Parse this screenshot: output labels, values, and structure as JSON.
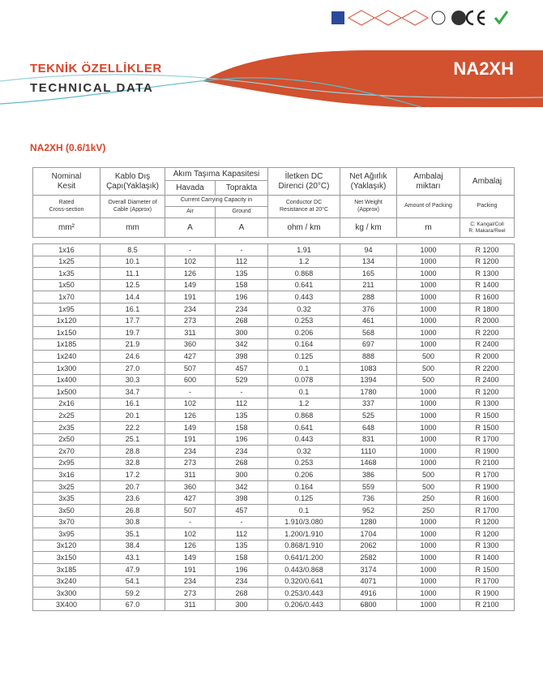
{
  "header": {
    "title_tr": "TEKNİK ÖZELLİKLER",
    "title_en": "TECHNICAL DATA",
    "product": "NA2XH"
  },
  "subtitle": "NA2XH (0.6/1kV)",
  "table": {
    "head_tr": {
      "kesit": "Nominal\nKesit",
      "cap": "Kablo Dış\nÇapı(Yaklaşık)",
      "akim": "Akım Taşıma Kapasitesi",
      "havada": "Havada",
      "toprakta": "Toprakta",
      "direnc": "İletken DC\nDirenci (20°C)",
      "agirlik": "Net Ağırlık\n(Yaklaşık)",
      "miktar": "Ambalaj\nmiktarı",
      "ambalaj": "Ambalaj"
    },
    "head_en": {
      "kesit": "Rated\nCross-section",
      "cap": "Overall Diameter of\nCable (Approx)",
      "akim": "Current Carrying Capacity in",
      "havada": "Air",
      "toprakta": "Ground",
      "direnc": "Conductor DC\nResistance at 20°C",
      "agirlik": "Net Weight\n(Approx)",
      "miktar": "Amount of Packing",
      "ambalaj": "Packing"
    },
    "units": [
      "mm²",
      "mm",
      "A",
      "A",
      "ohm / km",
      "kg / km",
      "m",
      "C: Kangal/Coll\nR: Makara/Reel"
    ],
    "rows": [
      [
        "1x16",
        "8.5",
        "-",
        "-",
        "1.91",
        "94",
        "1000",
        "R 1200"
      ],
      [
        "1x25",
        "10.1",
        "102",
        "112",
        "1.2",
        "134",
        "1000",
        "R 1200"
      ],
      [
        "1x35",
        "11.1",
        "126",
        "135",
        "0.868",
        "165",
        "1000",
        "R 1300"
      ],
      [
        "1x50",
        "12.5",
        "149",
        "158",
        "0.641",
        "211",
        "1000",
        "R 1400"
      ],
      [
        "1x70",
        "14.4",
        "191",
        "196",
        "0.443",
        "288",
        "1000",
        "R 1600"
      ],
      [
        "1x95",
        "16.1",
        "234",
        "234",
        "0.32",
        "376",
        "1000",
        "R 1800"
      ],
      [
        "1x120",
        "17.7",
        "273",
        "268",
        "0.253",
        "461",
        "1000",
        "R 2000"
      ],
      [
        "1x150",
        "19.7",
        "311",
        "300",
        "0.206",
        "568",
        "1000",
        "R 2200"
      ],
      [
        "1x185",
        "21.9",
        "360",
        "342",
        "0.164",
        "697",
        "1000",
        "R 2400"
      ],
      [
        "1x240",
        "24.6",
        "427",
        "398",
        "0.125",
        "888",
        "500",
        "R 2000"
      ],
      [
        "1x300",
        "27.0",
        "507",
        "457",
        "0.1",
        "1083",
        "500",
        "R 2200"
      ],
      [
        "1x400",
        "30.3",
        "600",
        "529",
        "0.078",
        "1394",
        "500",
        "R 2400"
      ],
      [
        "1x500",
        "34.7",
        "-",
        "-",
        "0.1",
        "1780",
        "1000",
        "R 1200"
      ],
      [
        "2x16",
        "16.1",
        "102",
        "112",
        "1.2",
        "337",
        "1000",
        "R 1300"
      ],
      [
        "2x25",
        "20.1",
        "126",
        "135",
        "0.868",
        "525",
        "1000",
        "R 1500"
      ],
      [
        "2x35",
        "22.2",
        "149",
        "158",
        "0.641",
        "648",
        "1000",
        "R 1500"
      ],
      [
        "2x50",
        "25.1",
        "191",
        "196",
        "0.443",
        "831",
        "1000",
        "R 1700"
      ],
      [
        "2x70",
        "28.8",
        "234",
        "234",
        "0.32",
        "1110",
        "1000",
        "R 1900"
      ],
      [
        "2x95",
        "32.8",
        "273",
        "268",
        "0.253",
        "1468",
        "1000",
        "R 2100"
      ],
      [
        "3x16",
        "17.2",
        "311",
        "300",
        "0.206",
        "386",
        "500",
        "R 1700"
      ],
      [
        "3x25",
        "20.7",
        "360",
        "342",
        "0.164",
        "559",
        "500",
        "R 1900"
      ],
      [
        "3x35",
        "23.6",
        "427",
        "398",
        "0.125",
        "736",
        "250",
        "R 1600"
      ],
      [
        "3x50",
        "26.8",
        "507",
        "457",
        "0.1",
        "952",
        "250",
        "R 1700"
      ],
      [
        "3x70",
        "30.8",
        "-",
        "-",
        "1.910/3.080",
        "1280",
        "1000",
        "R 1200"
      ],
      [
        "3x95",
        "35.1",
        "102",
        "112",
        "1.200/1.910",
        "1704",
        "1000",
        "R 1200"
      ],
      [
        "3x120",
        "38.4",
        "126",
        "135",
        "0.868/1.910",
        "2062",
        "1000",
        "R 1300"
      ],
      [
        "3x150",
        "43.1",
        "149",
        "158",
        "0.641/1.200",
        "2582",
        "1000",
        "R 1400"
      ],
      [
        "3x185",
        "47.9",
        "191",
        "196",
        "0.443/0.868",
        "3174",
        "1000",
        "R 1500"
      ],
      [
        "3x240",
        "54.1",
        "234",
        "234",
        "0.320/0.641",
        "4071",
        "1000",
        "R 1700"
      ],
      [
        "3x300",
        "59.2",
        "273",
        "268",
        "0.253/0.443",
        "4916",
        "1000",
        "R 1900"
      ],
      [
        "3X400",
        "67.0",
        "311",
        "300",
        "0.206/0.443",
        "6800",
        "1000",
        "R 2100"
      ]
    ]
  }
}
